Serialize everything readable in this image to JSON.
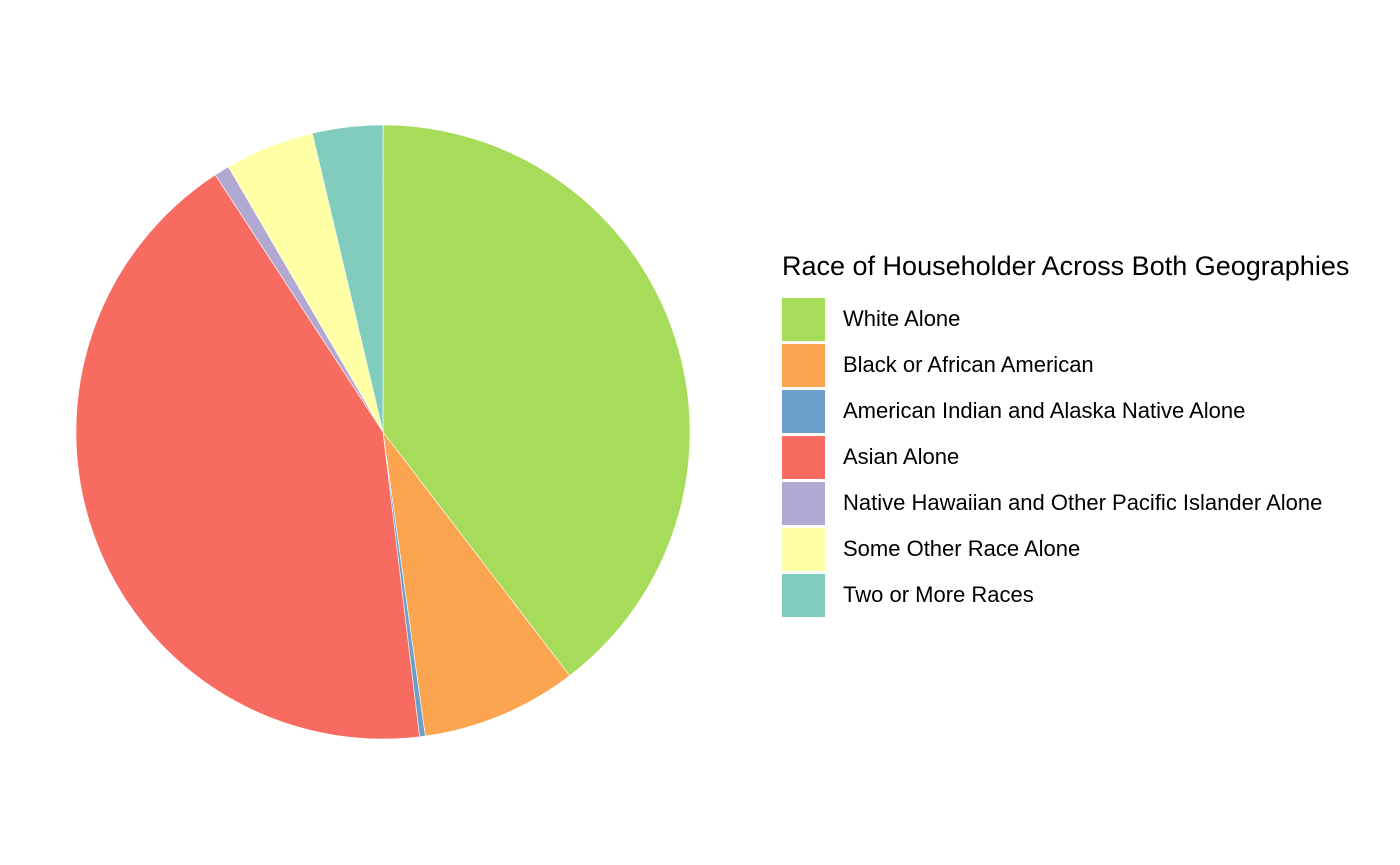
{
  "chart_data": {
    "type": "pie",
    "title": "",
    "legend_title": "Race of Householder Across Both Geographies",
    "legend_position": "right",
    "start": "12 o'clock",
    "direction": "clockwise",
    "slices": [
      {
        "label": "White Alone",
        "value": 39.6,
        "color": "#a6dc5a"
      },
      {
        "label": "Black or African American",
        "value": 8.2,
        "color": "#fca550"
      },
      {
        "label": "American Indian and Alaska Native Alone",
        "value": 0.3,
        "color": "#6c9fca"
      },
      {
        "label": "Asian Alone",
        "value": 42.7,
        "color": "#f76b61"
      },
      {
        "label": "Native Hawaiian and Other Pacific Islander Alone",
        "value": 0.8,
        "color": "#b2a9d3"
      },
      {
        "label": "Some Other Race Alone",
        "value": 4.7,
        "color": "#ffffa6"
      },
      {
        "label": "Two or More Races",
        "value": 3.7,
        "color": "#80cdbd"
      }
    ]
  }
}
